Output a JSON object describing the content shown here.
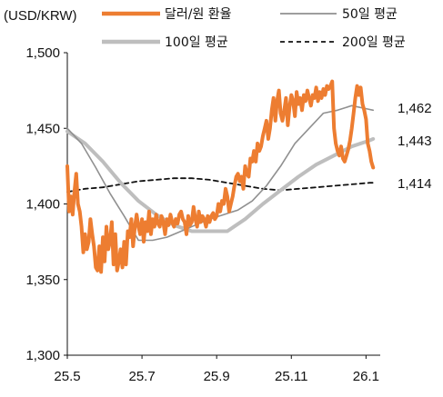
{
  "chart_data": {
    "type": "line",
    "ylabel": "(USD/KRW)",
    "ylim": [
      1300,
      1500
    ],
    "yticks": [
      1300,
      1350,
      1400,
      1450,
      1500
    ],
    "ytick_labels": [
      "1,300",
      "1,350",
      "1,400",
      "1,450",
      "1,500"
    ],
    "xlim": [
      0,
      176
    ],
    "xticks": [
      0,
      42,
      84,
      126,
      168
    ],
    "xtick_labels": [
      "25.5",
      "25.7",
      "25.9",
      "25.11",
      "26.1"
    ],
    "grid": false,
    "legend_placement": "top",
    "series": [
      {
        "name": "달러/원 환율",
        "color": "#ED7D31",
        "style": "solid-thick",
        "x": [
          0,
          1,
          2,
          3,
          4,
          5,
          6,
          7,
          8,
          9,
          10,
          11,
          12,
          13,
          14,
          15,
          16,
          17,
          18,
          19,
          20,
          21,
          22,
          23,
          24,
          25,
          26,
          27,
          28,
          29,
          30,
          31,
          32,
          33,
          34,
          35,
          36,
          37,
          38,
          39,
          40,
          41,
          42,
          43,
          44,
          45,
          46,
          47,
          48,
          49,
          50,
          51,
          52,
          53,
          54,
          55,
          56,
          57,
          58,
          59,
          60,
          61,
          62,
          63,
          64,
          65,
          66,
          67,
          68,
          69,
          70,
          71,
          72,
          73,
          74,
          75,
          76,
          77,
          78,
          79,
          80,
          81,
          82,
          83,
          84,
          85,
          86,
          87,
          88,
          89,
          90,
          91,
          92,
          93,
          94,
          95,
          96,
          97,
          98,
          99,
          100,
          101,
          102,
          103,
          104,
          105,
          106,
          107,
          108,
          109,
          110,
          111,
          112,
          113,
          114,
          115,
          116,
          117,
          118,
          119,
          120,
          121,
          122,
          123,
          124,
          125,
          126,
          127,
          128,
          129,
          130,
          131,
          132,
          133,
          134,
          135,
          136,
          137,
          138,
          139,
          140,
          141,
          142,
          143,
          144,
          145,
          146,
          147,
          148,
          149,
          150,
          151,
          152,
          153,
          154,
          155,
          156,
          157,
          158,
          159,
          160,
          161,
          162,
          163,
          164,
          165,
          166,
          167,
          168,
          169,
          170,
          171,
          172
        ],
        "values": [
          1425,
          1395,
          1405,
          1393,
          1408,
          1420,
          1400,
          1395,
          1385,
          1368,
          1380,
          1370,
          1375,
          1390,
          1380,
          1372,
          1358,
          1356,
          1372,
          1355,
          1378,
          1362,
          1385,
          1370,
          1375,
          1388,
          1360,
          1380,
          1356,
          1362,
          1370,
          1358,
          1375,
          1360,
          1382,
          1378,
          1390,
          1372,
          1385,
          1393,
          1385,
          1380,
          1390,
          1375,
          1388,
          1382,
          1395,
          1380,
          1390,
          1385,
          1393,
          1387,
          1385,
          1392,
          1388,
          1380,
          1390,
          1386,
          1393,
          1388,
          1385,
          1390,
          1387,
          1393,
          1395,
          1390,
          1388,
          1380,
          1392,
          1386,
          1388,
          1398,
          1390,
          1385,
          1395,
          1388,
          1392,
          1390,
          1385,
          1392,
          1388,
          1392,
          1394,
          1390,
          1392,
          1400,
          1395,
          1402,
          1400,
          1410,
          1405,
          1395,
          1400,
          1405,
          1412,
          1418,
          1420,
          1415,
          1418,
          1410,
          1425,
          1420,
          1418,
          1430,
          1428,
          1435,
          1428,
          1440,
          1435,
          1438,
          1445,
          1450,
          1455,
          1443,
          1450,
          1462,
          1470,
          1455,
          1468,
          1475,
          1460,
          1455,
          1462,
          1470,
          1452,
          1464,
          1472,
          1468,
          1458,
          1474,
          1466,
          1470,
          1462,
          1472,
          1468,
          1475,
          1470,
          1465,
          1472,
          1470,
          1477,
          1468,
          1474,
          1470,
          1476,
          1472,
          1478,
          1476,
          1478,
          1481,
          1450,
          1440,
          1435,
          1432,
          1438,
          1430,
          1428,
          1432,
          1436,
          1442,
          1450,
          1460,
          1470,
          1478,
          1472,
          1477,
          1466,
          1462,
          1456,
          1440,
          1435,
          1428,
          1424
        ]
      },
      {
        "name": "50일 평균",
        "color": "#909090",
        "style": "solid-thin",
        "x": [
          0,
          8,
          16,
          24,
          32,
          40,
          48,
          56,
          64,
          72,
          80,
          88,
          96,
          104,
          112,
          120,
          128,
          136,
          144,
          152,
          160,
          168,
          172
        ],
        "values": [
          1450,
          1440,
          1424,
          1407,
          1392,
          1376,
          1376,
          1378,
          1382,
          1386,
          1390,
          1393,
          1396,
          1402,
          1412,
          1425,
          1440,
          1450,
          1460,
          1462,
          1465,
          1463,
          1462
        ]
      },
      {
        "name": "100일 평균",
        "color": "#BEBEBE",
        "style": "solid-thick",
        "x": [
          0,
          10,
          20,
          30,
          40,
          50,
          60,
          70,
          80,
          90,
          100,
          110,
          120,
          130,
          140,
          150,
          160,
          170,
          172
        ],
        "values": [
          1448,
          1440,
          1428,
          1414,
          1402,
          1393,
          1386,
          1382,
          1382,
          1382,
          1390,
          1400,
          1409,
          1418,
          1426,
          1432,
          1438,
          1442,
          1443
        ]
      },
      {
        "name": "200일 평균",
        "color": "#111111",
        "style": "dashed",
        "x": [
          0,
          10,
          20,
          30,
          40,
          50,
          60,
          70,
          80,
          90,
          100,
          110,
          120,
          130,
          140,
          150,
          160,
          170,
          172
        ],
        "values": [
          1408,
          1410,
          1411,
          1413,
          1415,
          1416,
          1417,
          1417,
          1416,
          1414,
          1412,
          1410,
          1409,
          1410,
          1411,
          1412,
          1413,
          1414,
          1414
        ]
      }
    ],
    "end_labels": [
      "1,462",
      "1,443",
      "1,414"
    ]
  }
}
